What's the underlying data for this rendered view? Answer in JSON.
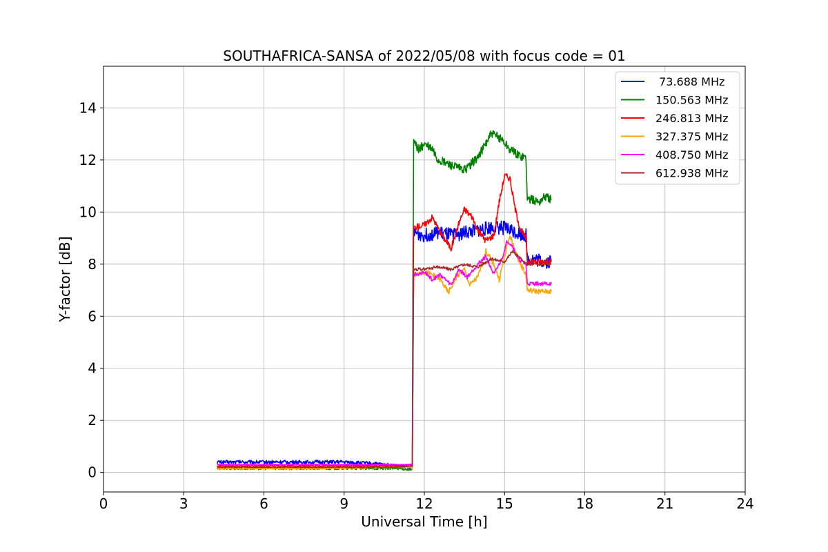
{
  "chart_data": {
    "type": "line",
    "title": "SOUTHAFRICA-SANSA of 2022/05/08 with focus code = 01",
    "xlabel": "Universal Time [h]",
    "ylabel": "Y-factor [dB]",
    "xlim": [
      0,
      24
    ],
    "ylim": [
      -0.75,
      15.6
    ],
    "xticks": [
      0,
      3,
      6,
      9,
      12,
      15,
      18,
      21,
      24
    ],
    "yticks": [
      0,
      2,
      4,
      6,
      8,
      10,
      12,
      14
    ],
    "grid": true,
    "legend_position": "upper right",
    "series": [
      {
        "name": " 73.688 MHz",
        "color": "#0000ff",
        "noise": 0.55,
        "x": [
          4.25,
          6.0,
          7.0,
          8.0,
          9.0,
          10.0,
          11.0,
          11.55,
          11.58,
          12.0,
          12.5,
          13.0,
          13.5,
          14.0,
          14.5,
          15.0,
          15.5,
          15.8,
          15.85,
          16.0,
          16.5,
          16.75
        ],
        "y": [
          0.4,
          0.4,
          0.4,
          0.4,
          0.4,
          0.35,
          0.25,
          0.2,
          9.2,
          9.1,
          9.2,
          9.1,
          9.2,
          9.3,
          9.4,
          9.4,
          9.2,
          9.1,
          8.2,
          8.2,
          8.1,
          8.1
        ]
      },
      {
        "name": "150.563 MHz",
        "color": "#008000",
        "noise": 0.35,
        "x": [
          4.25,
          8.0,
          11.0,
          11.55,
          11.6,
          11.8,
          12.0,
          12.3,
          12.5,
          13.0,
          13.5,
          14.0,
          14.5,
          14.9,
          15.2,
          15.5,
          15.8,
          15.85,
          16.3,
          16.5,
          16.75
        ],
        "y": [
          0.15,
          0.15,
          0.15,
          0.1,
          12.7,
          12.4,
          12.6,
          12.4,
          12.0,
          11.8,
          11.6,
          12.1,
          13.0,
          12.8,
          12.4,
          12.2,
          12.1,
          10.5,
          10.4,
          10.6,
          10.5
        ]
      },
      {
        "name": "246.813 MHz",
        "color": "#ff0000",
        "noise": 0.25,
        "x": [
          4.25,
          8.0,
          11.0,
          11.55,
          11.6,
          12.0,
          12.3,
          12.6,
          13.0,
          13.3,
          13.5,
          13.8,
          14.0,
          14.3,
          14.6,
          14.8,
          15.0,
          15.2,
          15.4,
          15.6,
          15.8,
          15.85,
          16.3,
          16.75
        ],
        "y": [
          0.25,
          0.25,
          0.25,
          0.3,
          9.4,
          9.5,
          9.8,
          9.2,
          8.6,
          9.6,
          10.1,
          9.8,
          9.3,
          8.9,
          9.1,
          10.4,
          11.4,
          11.3,
          10.1,
          9.3,
          9.0,
          8.1,
          8.1,
          8.1
        ]
      },
      {
        "name": "327.375 MHz",
        "color": "#ffa500",
        "noise": 0.2,
        "x": [
          4.25,
          8.0,
          11.0,
          11.55,
          11.6,
          12.0,
          12.3,
          12.6,
          12.9,
          13.2,
          13.5,
          13.7,
          14.0,
          14.3,
          14.6,
          14.8,
          15.0,
          15.2,
          15.4,
          15.6,
          15.8,
          15.85,
          16.3,
          16.75
        ],
        "y": [
          0.15,
          0.15,
          0.2,
          0.2,
          7.6,
          7.7,
          7.6,
          7.4,
          6.9,
          7.5,
          7.8,
          7.2,
          7.5,
          8.5,
          8.0,
          7.4,
          8.3,
          9.1,
          8.5,
          8.0,
          7.6,
          7.0,
          6.95,
          6.95
        ]
      },
      {
        "name": "408.750 MHz",
        "color": "#ff00ff",
        "noise": 0.15,
        "x": [
          4.25,
          8.0,
          11.0,
          11.55,
          11.6,
          12.0,
          12.3,
          12.6,
          13.0,
          13.3,
          13.6,
          14.0,
          14.3,
          14.6,
          14.9,
          15.1,
          15.3,
          15.5,
          15.8,
          15.85,
          16.3,
          16.75
        ],
        "y": [
          0.3,
          0.3,
          0.3,
          0.3,
          7.6,
          7.7,
          7.4,
          7.6,
          7.2,
          7.8,
          7.5,
          8.0,
          8.3,
          7.6,
          8.2,
          8.9,
          8.7,
          8.2,
          8.0,
          7.25,
          7.25,
          7.25
        ]
      },
      {
        "name": "612.938 MHz",
        "color": "#a52a2a",
        "noise": 0.12,
        "x": [
          4.25,
          8.0,
          11.0,
          11.55,
          11.6,
          12.0,
          12.5,
          13.0,
          13.5,
          14.0,
          14.5,
          15.0,
          15.3,
          15.6,
          15.8,
          15.85,
          16.3,
          16.75
        ],
        "y": [
          0.2,
          0.2,
          0.2,
          0.25,
          7.8,
          7.8,
          7.9,
          7.8,
          8.0,
          7.9,
          8.2,
          8.1,
          8.5,
          8.2,
          8.0,
          8.0,
          8.0,
          8.0
        ]
      }
    ]
  }
}
